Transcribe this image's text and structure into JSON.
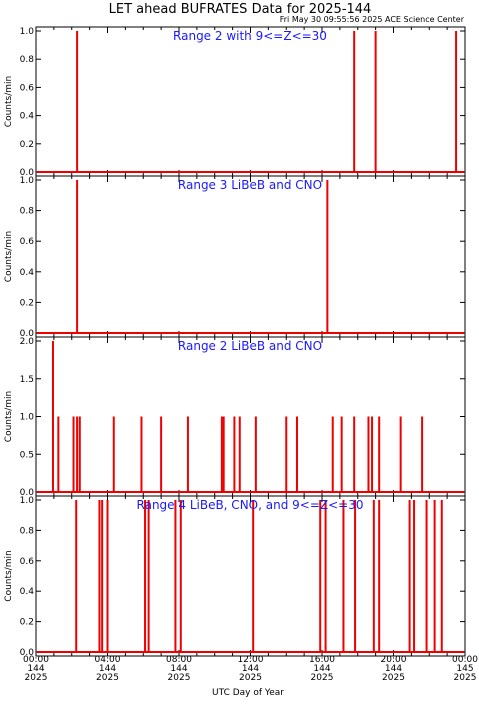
{
  "header": {
    "title": "LET ahead BUFRATES Data for 2025-144",
    "credit": "Fri May 30 09:55:56 2025 ACE Science Center"
  },
  "colors": {
    "series": "#ee0000",
    "panel_title": "#1a1aff",
    "axes": "#000000"
  },
  "chart_data": [
    {
      "type": "line",
      "title": "Range 2 with 9<=Z<=30",
      "ylabel": "Counts/min",
      "ylim": [
        0,
        1.0
      ],
      "yticks": [
        "0.0",
        "0.2",
        "0.4",
        "0.6",
        "0.8",
        "1.0"
      ],
      "xlim": [
        0,
        24
      ],
      "grid": false,
      "spikes": [
        {
          "t": 2.3,
          "v": 1.0
        },
        {
          "t": 17.8,
          "v": 1.0
        },
        {
          "t": 19.0,
          "v": 1.0
        },
        {
          "t": 23.5,
          "v": 1.0
        }
      ]
    },
    {
      "type": "line",
      "title": "Range 3 LiBeB and CNO",
      "ylabel": "Counts/min",
      "ylim": [
        0,
        1.0
      ],
      "yticks": [
        "0.0",
        "0.2",
        "0.4",
        "0.6",
        "0.8",
        "1.0"
      ],
      "xlim": [
        0,
        24
      ],
      "grid": false,
      "spikes": [
        {
          "t": 2.3,
          "v": 1.0
        },
        {
          "t": 16.3,
          "v": 1.0
        }
      ]
    },
    {
      "type": "line",
      "title": "Range 2 LiBeB and CNO",
      "ylabel": "Counts/min",
      "ylim": [
        0,
        2.0
      ],
      "yticks": [
        "0.0",
        "0.5",
        "1.0",
        "1.5",
        "2.0"
      ],
      "xlim": [
        0,
        24
      ],
      "grid": false,
      "spikes": [
        {
          "t": 0.95,
          "v": 2.0
        },
        {
          "t": 1.25,
          "v": 1.0
        },
        {
          "t": 2.1,
          "v": 1.0
        },
        {
          "t": 2.3,
          "v": 1.0
        },
        {
          "t": 2.45,
          "v": 1.0
        },
        {
          "t": 4.35,
          "v": 1.0
        },
        {
          "t": 5.9,
          "v": 1.0
        },
        {
          "t": 7.0,
          "v": 1.0
        },
        {
          "t": 8.5,
          "v": 1.0
        },
        {
          "t": 10.4,
          "v": 1.0
        },
        {
          "t": 10.5,
          "v": 1.0
        },
        {
          "t": 11.1,
          "v": 1.0
        },
        {
          "t": 11.4,
          "v": 1.0
        },
        {
          "t": 12.3,
          "v": 1.0
        },
        {
          "t": 14.0,
          "v": 1.0
        },
        {
          "t": 14.6,
          "v": 1.0
        },
        {
          "t": 16.6,
          "v": 1.0
        },
        {
          "t": 17.1,
          "v": 1.0
        },
        {
          "t": 17.8,
          "v": 1.0
        },
        {
          "t": 18.6,
          "v": 1.0
        },
        {
          "t": 18.8,
          "v": 1.0
        },
        {
          "t": 19.2,
          "v": 1.0
        },
        {
          "t": 20.4,
          "v": 1.0
        },
        {
          "t": 21.6,
          "v": 1.0
        }
      ]
    },
    {
      "type": "line",
      "title": "Range 4 LiBeB, CNO, and 9<=Z<=30",
      "ylabel": "Counts/min",
      "ylim": [
        0,
        1.0
      ],
      "yticks": [
        "0.0",
        "0.2",
        "0.4",
        "0.6",
        "0.8",
        "1.0"
      ],
      "xlim": [
        0,
        24
      ],
      "grid": false,
      "spikes": [
        {
          "t": 2.25,
          "v": 1.0
        },
        {
          "t": 3.55,
          "v": 1.0
        },
        {
          "t": 3.7,
          "v": 1.0
        },
        {
          "t": 4.0,
          "v": 1.0
        },
        {
          "t": 6.1,
          "v": 1.0
        },
        {
          "t": 6.3,
          "v": 1.0
        },
        {
          "t": 7.8,
          "v": 1.0
        },
        {
          "t": 8.1,
          "v": 1.0
        },
        {
          "t": 12.15,
          "v": 1.0
        },
        {
          "t": 15.9,
          "v": 1.0
        },
        {
          "t": 16.2,
          "v": 1.0
        },
        {
          "t": 17.2,
          "v": 1.0
        },
        {
          "t": 17.85,
          "v": 1.0
        },
        {
          "t": 18.9,
          "v": 1.0
        },
        {
          "t": 19.2,
          "v": 1.0
        },
        {
          "t": 20.9,
          "v": 1.0
        },
        {
          "t": 21.15,
          "v": 1.0
        },
        {
          "t": 21.85,
          "v": 1.0
        },
        {
          "t": 22.3,
          "v": 1.0
        },
        {
          "t": 22.7,
          "v": 1.0
        }
      ]
    }
  ],
  "x_axis": {
    "label": "UTC Day of Year",
    "ticks": [
      {
        "t": 0,
        "time": "00:00",
        "doy": "144",
        "year": "2025"
      },
      {
        "t": 4,
        "time": "04:00",
        "doy": "144",
        "year": "2025"
      },
      {
        "t": 8,
        "time": "08:00",
        "doy": "144",
        "year": "2025"
      },
      {
        "t": 12,
        "time": "12:00",
        "doy": "144",
        "year": "2025"
      },
      {
        "t": 16,
        "time": "16:00",
        "doy": "144",
        "year": "2025"
      },
      {
        "t": 20,
        "time": "20:00",
        "doy": "144",
        "year": "2025"
      },
      {
        "t": 24,
        "time": "00:00",
        "doy": "145",
        "year": "2025"
      }
    ]
  }
}
